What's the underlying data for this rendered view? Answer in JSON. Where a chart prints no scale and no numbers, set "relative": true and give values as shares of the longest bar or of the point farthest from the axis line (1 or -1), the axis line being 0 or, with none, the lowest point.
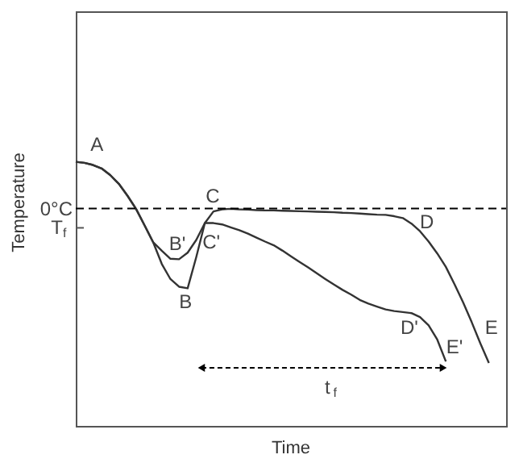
{
  "chart_data": {
    "type": "line",
    "relative": true,
    "tick_labels": false,
    "xlabel": "Time",
    "ylabel": "Temperature",
    "line_style": "solid",
    "categories": [
      null,
      null,
      null,
      null,
      null,
      null,
      null,
      null,
      null,
      null,
      null,
      null,
      null,
      null,
      null,
      null,
      null,
      null,
      null,
      null,
      null,
      null,
      null,
      null,
      null,
      null,
      null,
      null,
      null,
      null,
      null,
      null,
      null,
      null,
      null,
      null,
      null,
      null,
      null,
      null,
      null,
      null,
      null,
      null,
      null,
      null,
      null,
      null,
      null,
      null,
      null
    ],
    "series": [
      {
        "color": "#333333",
        "values": [
          1.0,
          0.996,
          0.988,
          0.975,
          0.95,
          0.917,
          0.872,
          0.822,
          0.759,
          0.695,
          0.613,
          0.556,
          0.527,
          0.521,
          0.639,
          0.768,
          0.812,
          0.82,
          0.822,
          0.82,
          0.819,
          0.817,
          0.816,
          0.816,
          0.815,
          0.814,
          0.813,
          0.812,
          0.811,
          0.81,
          0.809,
          0.807,
          0.806,
          0.804,
          0.802,
          0.8,
          0.799,
          0.794,
          0.787,
          0.766,
          0.737,
          0.698,
          0.653,
          0.602,
          0.537,
          0.468,
          0.393,
          0.313,
          0.238,
          null,
          null
        ]
      },
      {
        "color": "#333333",
        "values": [
          1.0,
          0.996,
          0.988,
          0.975,
          0.95,
          0.917,
          0.872,
          0.822,
          0.759,
          0.695,
          0.663,
          0.633,
          0.631,
          0.656,
          0.704,
          0.768,
          0.768,
          0.763,
          0.752,
          0.741,
          0.728,
          0.713,
          0.698,
          0.684,
          0.664,
          0.642,
          0.621,
          0.6,
          0.578,
          0.556,
          0.535,
          0.515,
          0.497,
          0.477,
          0.463,
          0.452,
          0.441,
          0.435,
          0.431,
          0.427,
          0.412,
          0.381,
          0.327,
          0.244,
          null,
          null,
          null,
          null,
          null,
          null,
          null
        ]
      }
    ],
    "ref_lines": [
      {
        "axis": "y",
        "value": 0.823,
        "label": "0°C",
        "line_style": "dashed",
        "color": "#000000"
      }
    ],
    "annotations": [
      "T$_{f}$",
      "A",
      "B",
      "B'",
      "C",
      "C'",
      "D",
      "D'",
      "E",
      "E'",
      "t$_{f}$"
    ]
  }
}
